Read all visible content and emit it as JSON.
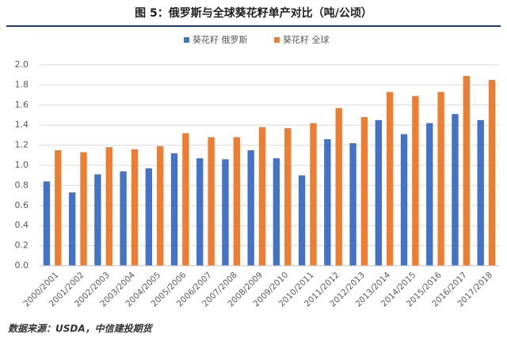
{
  "chart_data": {
    "type": "bar",
    "title": "图 5：俄罗斯与全球葵花籽单产对比（吨/公顷）",
    "source": "数据来源：USDA，中信建投期货",
    "categories": [
      "2000/2001",
      "2001/2002",
      "2002/2003",
      "2003/2004",
      "2004/2005",
      "2005/2006",
      "2006/2007",
      "2007/2008",
      "2008/2009",
      "2009/2010",
      "2010/2011",
      "2011/2012",
      "2012/2013",
      "2013/2014",
      "2014/2015",
      "2015/2016",
      "2016/2017",
      "2017/2018"
    ],
    "series": [
      {
        "name": "葵花籽 俄罗斯",
        "color": "#4472c4",
        "values": [
          0.84,
          0.73,
          0.91,
          0.94,
          0.97,
          1.12,
          1.07,
          1.06,
          1.15,
          1.07,
          0.9,
          1.26,
          1.22,
          1.45,
          1.31,
          1.42,
          1.51,
          1.45
        ]
      },
      {
        "name": "葵花籽 全球",
        "color": "#ed7d31",
        "values": [
          1.15,
          1.13,
          1.18,
          1.16,
          1.19,
          1.32,
          1.28,
          1.28,
          1.38,
          1.37,
          1.42,
          1.57,
          1.48,
          1.73,
          1.69,
          1.73,
          1.89,
          1.85
        ]
      }
    ],
    "ylim": [
      0,
      2
    ],
    "yticks": [
      {
        "value": 0,
        "label": "0.0"
      },
      {
        "value": 0.2,
        "label": "0.2"
      },
      {
        "value": 0.4,
        "label": "0.4"
      },
      {
        "value": 0.6,
        "label": "0.6"
      },
      {
        "value": 0.8,
        "label": "0.8"
      },
      {
        "value": 1,
        "label": "1.0"
      },
      {
        "value": 1.2,
        "label": "1.2"
      },
      {
        "value": 1.4,
        "label": "1.4"
      },
      {
        "value": 1.6,
        "label": "1.6"
      },
      {
        "value": 1.8,
        "label": "1.8"
      },
      {
        "value": 2,
        "label": "2.0"
      }
    ],
    "grid": true,
    "legend": "top"
  }
}
